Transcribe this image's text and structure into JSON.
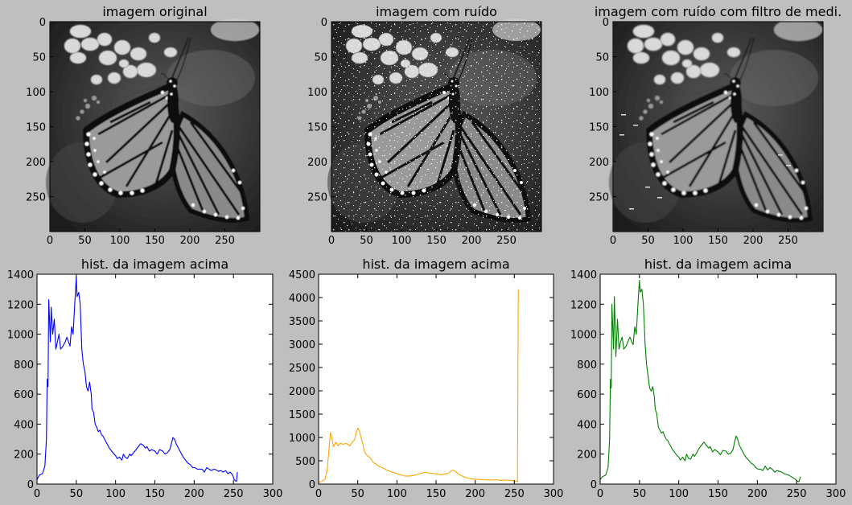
{
  "figure": {
    "background": "#bfbfbf"
  },
  "chart_data": [
    {
      "type": "image",
      "title": "imagem original",
      "content": "grayscale photo: monarch butterfly on flowers",
      "xticks": [
        0,
        50,
        100,
        150,
        200,
        250
      ],
      "yticks": [
        0,
        50,
        100,
        150,
        200,
        250
      ],
      "xlim": [
        0,
        300
      ],
      "ylim": [
        300,
        0
      ]
    },
    {
      "type": "image",
      "title": "imagem com ruído",
      "content": "grayscale photo with salt noise",
      "xticks": [
        0,
        50,
        100,
        150,
        200,
        250
      ],
      "yticks": [
        0,
        50,
        100,
        150,
        200,
        250
      ],
      "xlim": [
        0,
        300
      ],
      "ylim": [
        300,
        0
      ]
    },
    {
      "type": "image",
      "title": "imagem com ruído com filtro de medi.",
      "content": "grayscale photo after median filter",
      "xticks": [
        0,
        50,
        100,
        150,
        200,
        250
      ],
      "yticks": [
        0,
        50,
        100,
        150,
        200,
        250
      ],
      "xlim": [
        0,
        300
      ],
      "ylim": [
        300,
        0
      ]
    },
    {
      "type": "line",
      "title": "hist. da imagem acima",
      "color": "#0000ff",
      "xlim": [
        0,
        300
      ],
      "ylim": [
        0,
        1400
      ],
      "xticks": [
        0,
        50,
        100,
        150,
        200,
        250,
        300
      ],
      "yticks": [
        0,
        200,
        400,
        600,
        800,
        1000,
        1200,
        1400
      ],
      "points": [
        [
          0,
          30
        ],
        [
          3,
          60
        ],
        [
          7,
          70
        ],
        [
          10,
          120
        ],
        [
          12,
          300
        ],
        [
          13,
          700
        ],
        [
          14,
          650
        ],
        [
          15,
          1230
        ],
        [
          17,
          950
        ],
        [
          18,
          1180
        ],
        [
          20,
          1000
        ],
        [
          22,
          1100
        ],
        [
          24,
          900
        ],
        [
          26,
          950
        ],
        [
          28,
          1000
        ],
        [
          30,
          900
        ],
        [
          33,
          920
        ],
        [
          36,
          950
        ],
        [
          38,
          980
        ],
        [
          40,
          950
        ],
        [
          42,
          920
        ],
        [
          44,
          1050
        ],
        [
          46,
          1000
        ],
        [
          48,
          1200
        ],
        [
          50,
          1380
        ],
        [
          51,
          1250
        ],
        [
          53,
          1280
        ],
        [
          55,
          1200
        ],
        [
          57,
          900
        ],
        [
          59,
          800
        ],
        [
          61,
          750
        ],
        [
          63,
          650
        ],
        [
          65,
          620
        ],
        [
          67,
          680
        ],
        [
          69,
          600
        ],
        [
          70,
          500
        ],
        [
          72,
          480
        ],
        [
          74,
          400
        ],
        [
          76,
          380
        ],
        [
          78,
          350
        ],
        [
          80,
          360
        ],
        [
          82,
          330
        ],
        [
          84,
          320
        ],
        [
          86,
          300
        ],
        [
          88,
          280
        ],
        [
          90,
          260
        ],
        [
          92,
          240
        ],
        [
          95,
          220
        ],
        [
          98,
          200
        ],
        [
          100,
          190
        ],
        [
          102,
          170
        ],
        [
          105,
          180
        ],
        [
          108,
          160
        ],
        [
          110,
          200
        ],
        [
          112,
          180
        ],
        [
          115,
          170
        ],
        [
          118,
          200
        ],
        [
          120,
          190
        ],
        [
          123,
          210
        ],
        [
          126,
          230
        ],
        [
          129,
          250
        ],
        [
          132,
          270
        ],
        [
          135,
          260
        ],
        [
          138,
          240
        ],
        [
          140,
          250
        ],
        [
          143,
          220
        ],
        [
          146,
          230
        ],
        [
          150,
          220
        ],
        [
          153,
          200
        ],
        [
          156,
          230
        ],
        [
          160,
          220
        ],
        [
          163,
          200
        ],
        [
          166,
          210
        ],
        [
          169,
          230
        ],
        [
          171,
          270
        ],
        [
          173,
          310
        ],
        [
          175,
          300
        ],
        [
          177,
          270
        ],
        [
          180,
          240
        ],
        [
          183,
          210
        ],
        [
          186,
          180
        ],
        [
          189,
          160
        ],
        [
          192,
          140
        ],
        [
          195,
          130
        ],
        [
          198,
          110
        ],
        [
          201,
          110
        ],
        [
          204,
          100
        ],
        [
          207,
          100
        ],
        [
          210,
          100
        ],
        [
          213,
          80
        ],
        [
          216,
          110
        ],
        [
          219,
          100
        ],
        [
          222,
          90
        ],
        [
          225,
          100
        ],
        [
          228,
          95
        ],
        [
          231,
          85
        ],
        [
          234,
          90
        ],
        [
          237,
          80
        ],
        [
          240,
          90
        ],
        [
          243,
          70
        ],
        [
          246,
          80
        ],
        [
          249,
          60
        ],
        [
          251,
          30
        ],
        [
          253,
          20
        ],
        [
          254,
          20
        ],
        [
          255,
          80
        ]
      ]
    },
    {
      "type": "line",
      "title": "hist. da imagem acima",
      "color": "#ffa500",
      "xlim": [
        0,
        300
      ],
      "ylim": [
        0,
        4500
      ],
      "xticks": [
        0,
        50,
        100,
        150,
        200,
        250,
        300
      ],
      "yticks": [
        0,
        500,
        1000,
        1500,
        2000,
        2500,
        3000,
        3500,
        4000,
        4500
      ],
      "points": [
        [
          0,
          30
        ],
        [
          4,
          60
        ],
        [
          8,
          100
        ],
        [
          11,
          300
        ],
        [
          13,
          700
        ],
        [
          15,
          1100
        ],
        [
          17,
          1000
        ],
        [
          19,
          800
        ],
        [
          22,
          900
        ],
        [
          25,
          820
        ],
        [
          28,
          880
        ],
        [
          31,
          850
        ],
        [
          34,
          870
        ],
        [
          37,
          860
        ],
        [
          40,
          820
        ],
        [
          43,
          900
        ],
        [
          46,
          950
        ],
        [
          48,
          1100
        ],
        [
          50,
          1200
        ],
        [
          52,
          1150
        ],
        [
          54,
          1000
        ],
        [
          56,
          900
        ],
        [
          58,
          720
        ],
        [
          60,
          650
        ],
        [
          63,
          600
        ],
        [
          66,
          560
        ],
        [
          70,
          460
        ],
        [
          74,
          420
        ],
        [
          78,
          370
        ],
        [
          82,
          350
        ],
        [
          86,
          310
        ],
        [
          90,
          280
        ],
        [
          95,
          250
        ],
        [
          100,
          220
        ],
        [
          105,
          200
        ],
        [
          110,
          175
        ],
        [
          115,
          170
        ],
        [
          120,
          180
        ],
        [
          125,
          200
        ],
        [
          130,
          230
        ],
        [
          135,
          250
        ],
        [
          140,
          240
        ],
        [
          145,
          230
        ],
        [
          150,
          220
        ],
        [
          155,
          200
        ],
        [
          160,
          210
        ],
        [
          165,
          230
        ],
        [
          168,
          260
        ],
        [
          171,
          300
        ],
        [
          174,
          280
        ],
        [
          177,
          240
        ],
        [
          180,
          200
        ],
        [
          185,
          160
        ],
        [
          190,
          130
        ],
        [
          195,
          110
        ],
        [
          200,
          105
        ],
        [
          205,
          100
        ],
        [
          210,
          95
        ],
        [
          215,
          90
        ],
        [
          220,
          85
        ],
        [
          225,
          95
        ],
        [
          230,
          85
        ],
        [
          235,
          80
        ],
        [
          240,
          90
        ],
        [
          245,
          80
        ],
        [
          250,
          70
        ],
        [
          253,
          60
        ],
        [
          254,
          50
        ],
        [
          255,
          4180
        ]
      ]
    },
    {
      "type": "line",
      "title": "hist. da imagem acima",
      "color": "#008000",
      "xlim": [
        0,
        300
      ],
      "ylim": [
        0,
        1400
      ],
      "xticks": [
        0,
        50,
        100,
        150,
        200,
        250,
        300
      ],
      "yticks": [
        0,
        200,
        400,
        600,
        800,
        1000,
        1200,
        1400
      ],
      "points": [
        [
          0,
          30
        ],
        [
          3,
          50
        ],
        [
          7,
          60
        ],
        [
          10,
          110
        ],
        [
          12,
          300
        ],
        [
          13,
          700
        ],
        [
          14,
          640
        ],
        [
          15,
          1200
        ],
        [
          17,
          900
        ],
        [
          18,
          1250
        ],
        [
          20,
          850
        ],
        [
          22,
          1100
        ],
        [
          24,
          900
        ],
        [
          26,
          950
        ],
        [
          28,
          980
        ],
        [
          30,
          900
        ],
        [
          33,
          920
        ],
        [
          36,
          960
        ],
        [
          38,
          980
        ],
        [
          40,
          950
        ],
        [
          42,
          930
        ],
        [
          44,
          1050
        ],
        [
          46,
          1000
        ],
        [
          48,
          1200
        ],
        [
          50,
          1360
        ],
        [
          51,
          1280
        ],
        [
          53,
          1300
        ],
        [
          55,
          1200
        ],
        [
          57,
          950
        ],
        [
          59,
          800
        ],
        [
          61,
          720
        ],
        [
          63,
          640
        ],
        [
          65,
          620
        ],
        [
          67,
          650
        ],
        [
          69,
          580
        ],
        [
          70,
          500
        ],
        [
          72,
          470
        ],
        [
          74,
          380
        ],
        [
          76,
          360
        ],
        [
          78,
          340
        ],
        [
          80,
          350
        ],
        [
          82,
          320
        ],
        [
          84,
          300
        ],
        [
          86,
          290
        ],
        [
          88,
          270
        ],
        [
          90,
          250
        ],
        [
          92,
          230
        ],
        [
          95,
          210
        ],
        [
          98,
          190
        ],
        [
          100,
          180
        ],
        [
          102,
          160
        ],
        [
          105,
          180
        ],
        [
          108,
          155
        ],
        [
          110,
          200
        ],
        [
          112,
          175
        ],
        [
          115,
          165
        ],
        [
          118,
          200
        ],
        [
          120,
          185
        ],
        [
          123,
          210
        ],
        [
          126,
          240
        ],
        [
          129,
          260
        ],
        [
          132,
          280
        ],
        [
          135,
          260
        ],
        [
          138,
          240
        ],
        [
          140,
          250
        ],
        [
          143,
          215
        ],
        [
          146,
          230
        ],
        [
          150,
          215
        ],
        [
          153,
          195
        ],
        [
          156,
          225
        ],
        [
          160,
          220
        ],
        [
          163,
          200
        ],
        [
          166,
          205
        ],
        [
          169,
          230
        ],
        [
          171,
          280
        ],
        [
          173,
          320
        ],
        [
          175,
          300
        ],
        [
          177,
          260
        ],
        [
          180,
          230
        ],
        [
          183,
          200
        ],
        [
          186,
          175
        ],
        [
          189,
          160
        ],
        [
          192,
          140
        ],
        [
          195,
          130
        ],
        [
          198,
          110
        ],
        [
          201,
          100
        ],
        [
          204,
          100
        ],
        [
          207,
          90
        ],
        [
          210,
          120
        ],
        [
          213,
          95
        ],
        [
          216,
          110
        ],
        [
          219,
          100
        ],
        [
          222,
          80
        ],
        [
          225,
          90
        ],
        [
          228,
          85
        ],
        [
          231,
          80
        ],
        [
          234,
          70
        ],
        [
          237,
          65
        ],
        [
          240,
          60
        ],
        [
          243,
          50
        ],
        [
          246,
          40
        ],
        [
          249,
          30
        ],
        [
          251,
          20
        ],
        [
          253,
          15
        ],
        [
          255,
          50
        ]
      ]
    }
  ]
}
